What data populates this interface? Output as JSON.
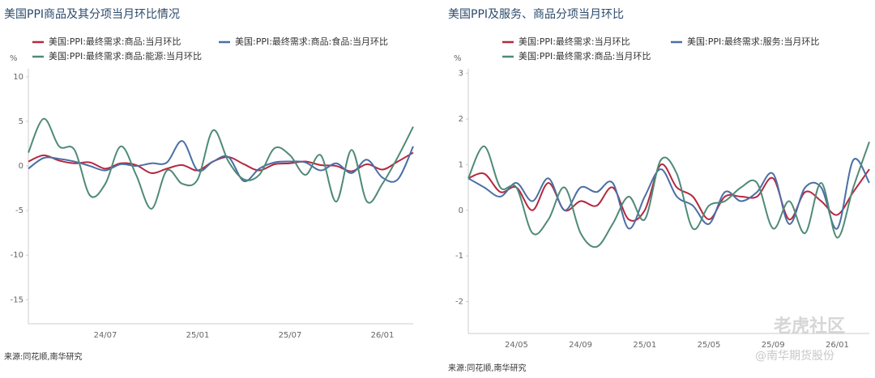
{
  "chart_data": [
    {
      "type": "line",
      "title": "美国PPI商品及其分项当月环比情况",
      "y_unit": "%",
      "source": "来源:同花顺,南华研究",
      "categories": [
        null,
        null,
        null,
        null,
        null,
        "24/07",
        null,
        null,
        null,
        null,
        null,
        "25/01",
        null,
        null,
        null,
        null,
        null,
        "25/07",
        null,
        null,
        null,
        null,
        null,
        "26/01",
        null,
        null
      ],
      "ylim": [
        -17.7,
        10.9
      ],
      "yticks": [
        10,
        5,
        0,
        -5,
        -10,
        -15
      ],
      "series": [
        {
          "name": "美国:PPI:最终需求:商品:当月环比",
          "color": "#b5283f",
          "values": [
            0.5,
            1.2,
            0.6,
            0.3,
            0.4,
            -0.3,
            0.3,
            0.1,
            -0.8,
            -0.3,
            0.1,
            -0.5,
            0.5,
            1.0,
            0.2,
            -0.5,
            0.2,
            0.3,
            0.5,
            0.1,
            0.0,
            -0.6,
            0.2,
            -0.4,
            0.5,
            1.5
          ]
        },
        {
          "name": "美国:PPI:最终需求:商品:食品:当月环比",
          "color": "#4a6fa5",
          "values": [
            -0.3,
            0.9,
            0.8,
            0.5,
            0.0,
            -0.5,
            0.2,
            0.0,
            0.3,
            0.4,
            2.8,
            -0.5,
            0.5,
            1.0,
            -1.7,
            -0.3,
            0.4,
            0.5,
            0.4,
            -0.5,
            0.3,
            -0.8,
            0.7,
            -1.3,
            -1.5,
            2.2
          ]
        },
        {
          "name": "美国:PPI:最终需求:商品:能源:当月环比",
          "color": "#4f8a78",
          "values": [
            1.5,
            5.3,
            2.2,
            1.8,
            -3.3,
            -2.0,
            2.2,
            -1.0,
            -4.8,
            -0.5,
            -2.0,
            -1.5,
            4.0,
            0.5,
            -1.5,
            -1.0,
            2.0,
            1.2,
            -1.0,
            1.2,
            -4.0,
            1.8,
            -4.0,
            -2.0,
            1.0,
            4.4
          ]
        }
      ]
    },
    {
      "type": "line",
      "title": "美国PPI及服务、商品分项当月环比",
      "y_unit": "%",
      "source": "来源:同花顺,南华研究",
      "categories": [
        null,
        null,
        null,
        "24/05",
        null,
        null,
        null,
        "24/09",
        null,
        null,
        null,
        "25/01",
        null,
        null,
        null,
        "25/05",
        null,
        null,
        null,
        "25/09",
        null,
        null,
        null,
        "26/01",
        null,
        null
      ],
      "ylim": [
        -2.7,
        3.1
      ],
      "yticks": [
        3,
        2,
        1,
        0,
        -1,
        -2
      ],
      "series": [
        {
          "name": "美国:PPI:最终需求:当月环比",
          "color": "#b5283f",
          "values": [
            0.7,
            0.8,
            0.4,
            0.5,
            0.0,
            0.6,
            0.0,
            0.2,
            0.1,
            0.5,
            -0.2,
            0.0,
            1.0,
            0.5,
            0.3,
            -0.2,
            0.3,
            0.3,
            0.3,
            0.7,
            -0.2,
            0.4,
            0.2,
            -0.1,
            0.4,
            0.9
          ]
        },
        {
          "name": "美国:PPI:最终需求:服务:当月环比",
          "color": "#4a6fa5",
          "values": [
            0.7,
            0.5,
            0.3,
            0.6,
            0.2,
            0.7,
            0.0,
            0.5,
            0.4,
            0.6,
            -0.4,
            0.3,
            0.9,
            0.3,
            0.1,
            -0.3,
            0.4,
            0.2,
            0.4,
            0.8,
            -0.3,
            0.5,
            0.5,
            -0.4,
            1.1,
            0.6
          ]
        },
        {
          "name": "美国:PPI:最终需求:商品:当月环比",
          "color": "#4f8a78",
          "values": [
            0.7,
            1.4,
            0.5,
            0.5,
            -0.5,
            -0.2,
            0.5,
            -0.5,
            -0.8,
            -0.3,
            0.3,
            -0.2,
            1.1,
            0.8,
            -0.4,
            0.1,
            0.2,
            0.5,
            0.6,
            -0.4,
            0.2,
            -0.5,
            0.6,
            -0.6,
            0.5,
            1.5
          ]
        }
      ]
    }
  ],
  "watermark": {
    "brand": "老虎社区",
    "account": "@南华期货股份"
  }
}
